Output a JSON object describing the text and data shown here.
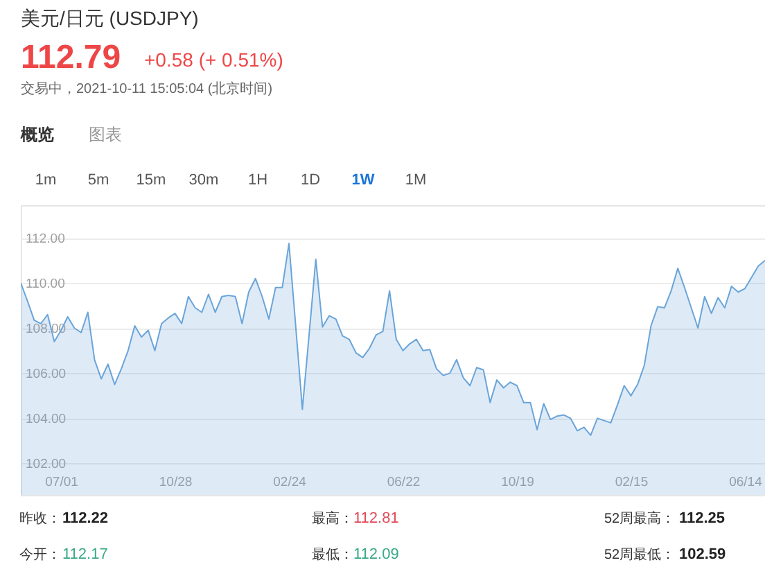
{
  "chart_data": {
    "type": "area",
    "title": "美元/日元 (USDJPY)",
    "annotations": [
      "112.79",
      "+0.58 (+ 0.51%)",
      "交易中，2021-10-11 15:05:04 (北京时间)",
      "概览",
      "图表",
      "1m",
      "5m",
      "15m",
      "30m",
      "1H",
      "1D",
      "1W",
      "1M",
      "昨收：",
      "112.22",
      "最高：",
      "112.81",
      "52周最高：",
      "112.25",
      "今开：",
      "112.17",
      "最低：",
      "112.09",
      "52周最低：",
      "102.59"
    ],
    "categories": [
      null,
      null,
      null,
      null,
      null,
      null,
      "07/01",
      null,
      null,
      null,
      null,
      null,
      null,
      null,
      null,
      null,
      null,
      null,
      null,
      null,
      null,
      null,
      null,
      "10/28",
      null,
      null,
      null,
      null,
      null,
      null,
      null,
      null,
      null,
      null,
      null,
      null,
      null,
      null,
      null,
      null,
      "02/24",
      null,
      null,
      null,
      null,
      null,
      null,
      null,
      null,
      null,
      null,
      null,
      null,
      null,
      null,
      null,
      null,
      "06/22",
      null,
      null,
      null,
      null,
      null,
      null,
      null,
      null,
      null,
      null,
      null,
      null,
      null,
      null,
      null,
      null,
      "10/19",
      null,
      null,
      null,
      null,
      null,
      null,
      null,
      null,
      null,
      null,
      null,
      null,
      null,
      null,
      null,
      null,
      "02/15",
      null,
      null,
      null,
      null,
      null,
      null,
      null,
      null,
      null,
      null,
      null,
      null,
      null,
      null,
      null,
      null,
      "06/14",
      null,
      null,
      null
    ],
    "series": [
      {
        "color": "#6aa4d9",
        "values": [
          110.0,
          109.2,
          108.35,
          108.2,
          108.6,
          107.4,
          107.9,
          108.5,
          108.0,
          107.8,
          108.7,
          106.6,
          105.75,
          106.4,
          105.5,
          106.2,
          107.0,
          108.1,
          107.6,
          107.9,
          107.0,
          108.2,
          108.45,
          108.65,
          108.2,
          109.4,
          108.9,
          108.7,
          109.5,
          108.7,
          109.4,
          109.45,
          109.4,
          108.2,
          109.6,
          110.2,
          109.4,
          108.4,
          109.8,
          109.8,
          111.75,
          108.1,
          104.4,
          107.7,
          111.05,
          108.05,
          108.55,
          108.4,
          107.65,
          107.5,
          106.9,
          106.7,
          107.1,
          107.7,
          107.85,
          109.65,
          107.5,
          107.0,
          107.3,
          107.5,
          107.0,
          107.05,
          106.2,
          105.9,
          106.0,
          106.6,
          105.8,
          105.45,
          106.25,
          106.15,
          104.7,
          105.7,
          105.35,
          105.6,
          105.45,
          104.7,
          104.7,
          103.5,
          104.65,
          103.95,
          104.1,
          104.15,
          104.0,
          103.45,
          103.6,
          103.25,
          104.0,
          103.9,
          103.8,
          104.6,
          105.45,
          105.0,
          105.5,
          106.35,
          108.1,
          108.95,
          108.9,
          109.65,
          110.65,
          109.8,
          108.9,
          108.0,
          109.4,
          108.65,
          109.35,
          108.9,
          109.85,
          109.6,
          109.75,
          110.25,
          110.75,
          111.0
        ]
      }
    ],
    "ylim": [
      100.6,
      113.45
    ],
    "yticks": [
      {
        "value": 102,
        "label": "102.00"
      },
      {
        "value": 104,
        "label": "104.00"
      },
      {
        "value": 106,
        "label": "106.00"
      },
      {
        "value": 108,
        "label": "108.00"
      },
      {
        "value": 110,
        "label": "110.00"
      },
      {
        "value": 112,
        "label": "112.00"
      }
    ],
    "grid": "y"
  }
}
